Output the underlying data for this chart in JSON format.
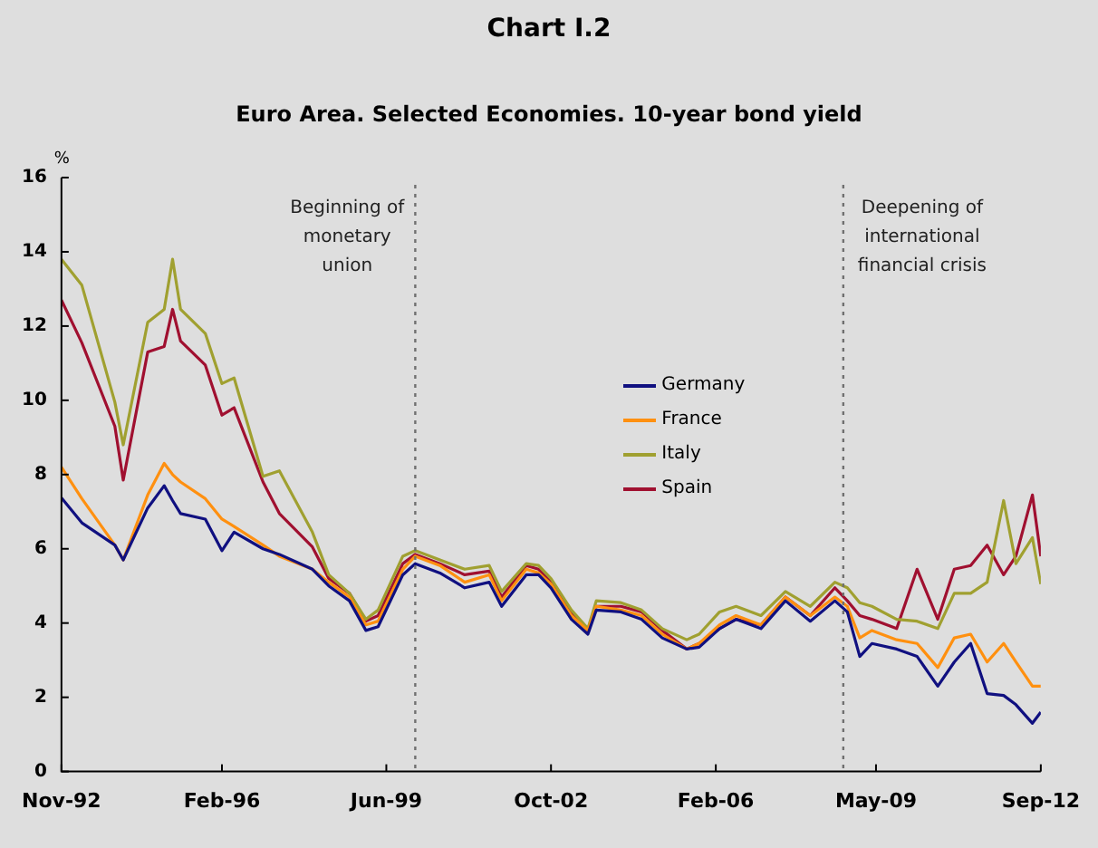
{
  "chart_data": {
    "type": "line",
    "title": "Chart I.2",
    "subtitle": "Euro Area. Selected Economies. 10-year bond yield",
    "ylabel": "%",
    "x": [
      "1992-11",
      "1993-04",
      "1993-12",
      "1994-02",
      "1994-08",
      "1994-12",
      "1995-02",
      "1995-04",
      "1995-10",
      "1996-02",
      "1996-05",
      "1996-12",
      "1997-04",
      "1997-12",
      "1998-04",
      "1998-09",
      "1999-01",
      "1999-04",
      "1999-10",
      "2000-01",
      "2000-07",
      "2001-01",
      "2001-07",
      "2001-10",
      "2002-04",
      "2002-07",
      "2002-10",
      "2003-03",
      "2003-07",
      "2003-09",
      "2004-03",
      "2004-08",
      "2005-01",
      "2005-07",
      "2005-10",
      "2006-03",
      "2006-07",
      "2007-01",
      "2007-07",
      "2008-01",
      "2008-07",
      "2008-10",
      "2009-01",
      "2009-04",
      "2009-10",
      "2010-03",
      "2010-08",
      "2010-12",
      "2011-04",
      "2011-08",
      "2011-12",
      "2012-03",
      "2012-07",
      "2012-09"
    ],
    "series": [
      {
        "name": "Germany",
        "color": "#101080",
        "values": [
          7.37,
          6.7,
          6.1,
          5.7,
          7.1,
          7.7,
          7.3,
          6.95,
          6.8,
          5.95,
          6.45,
          6.0,
          5.85,
          5.45,
          5.0,
          4.6,
          3.8,
          3.9,
          5.3,
          5.6,
          5.35,
          4.95,
          5.1,
          4.45,
          5.3,
          5.3,
          4.95,
          4.1,
          3.7,
          4.35,
          4.3,
          4.1,
          3.6,
          3.3,
          3.35,
          3.85,
          4.1,
          3.85,
          4.6,
          4.05,
          4.6,
          4.3,
          3.1,
          3.45,
          3.3,
          3.1,
          2.3,
          2.95,
          3.45,
          2.1,
          2.05,
          1.8,
          1.3,
          1.6
        ]
      },
      {
        "name": "France",
        "color": "#ff9010",
        "values": [
          8.2,
          7.35,
          6.1,
          5.7,
          7.45,
          8.3,
          8.0,
          7.8,
          7.35,
          6.8,
          6.6,
          6.1,
          5.8,
          5.45,
          5.1,
          4.7,
          3.95,
          4.05,
          5.45,
          5.8,
          5.55,
          5.1,
          5.3,
          4.6,
          5.45,
          5.35,
          5.05,
          4.2,
          3.8,
          4.45,
          4.35,
          4.2,
          3.7,
          3.3,
          3.45,
          3.95,
          4.2,
          3.95,
          4.7,
          4.2,
          4.7,
          4.45,
          3.6,
          3.8,
          3.55,
          3.45,
          2.8,
          3.6,
          3.7,
          2.95,
          3.45,
          2.95,
          2.3,
          2.3
        ]
      },
      {
        "name": "Italy",
        "color": "#a0a030",
        "values": [
          13.8,
          13.1,
          9.95,
          8.8,
          12.1,
          12.45,
          13.8,
          12.45,
          11.8,
          10.45,
          10.6,
          7.95,
          8.1,
          6.45,
          5.3,
          4.8,
          4.1,
          4.35,
          5.8,
          5.95,
          5.7,
          5.45,
          5.55,
          4.85,
          5.6,
          5.55,
          5.2,
          4.35,
          3.85,
          4.6,
          4.55,
          4.35,
          3.85,
          3.55,
          3.7,
          4.3,
          4.45,
          4.2,
          4.85,
          4.45,
          5.1,
          4.95,
          4.55,
          4.45,
          4.1,
          4.05,
          3.85,
          4.8,
          4.8,
          5.1,
          7.3,
          5.6,
          6.3,
          5.05
        ]
      },
      {
        "name": "Spain",
        "color": "#a01030",
        "values": [
          12.7,
          11.55,
          9.3,
          7.85,
          11.3,
          11.45,
          12.45,
          11.6,
          10.95,
          9.6,
          9.8,
          7.8,
          6.95,
          6.05,
          5.2,
          4.8,
          4.05,
          4.2,
          5.6,
          5.85,
          5.6,
          5.3,
          5.4,
          4.7,
          5.55,
          5.45,
          5.1,
          4.3,
          3.8,
          4.45,
          4.45,
          4.3,
          3.8,
          3.3,
          3.45,
          3.85,
          4.1,
          3.95,
          4.7,
          4.2,
          4.95,
          4.6,
          4.2,
          4.1,
          3.85,
          5.45,
          4.1,
          5.45,
          5.55,
          6.1,
          5.3,
          5.8,
          7.45,
          5.8
        ]
      }
    ],
    "xlim": [
      "1992-11",
      "2012-09"
    ],
    "xticks": [
      {
        "value": "1992-11",
        "label": "Nov-92"
      },
      {
        "value": "1996-02",
        "label": "Feb-96"
      },
      {
        "value": "1999-06",
        "label": "Jun-99"
      },
      {
        "value": "2002-10",
        "label": "Oct-02"
      },
      {
        "value": "2006-02",
        "label": "Feb-06"
      },
      {
        "value": "2009-05",
        "label": "May-09"
      },
      {
        "value": "2012-09",
        "label": "Sep-12"
      }
    ],
    "ylim": [
      0,
      16
    ],
    "yticks": [
      0,
      2,
      4,
      6,
      8,
      10,
      12,
      14,
      16
    ],
    "ref_lines": [
      {
        "axis": "x",
        "value": "2000-01",
        "label": "Beginning of\nmonetary\nunion",
        "color": "#707070",
        "line_style": "dotted"
      },
      {
        "axis": "x",
        "value": "2008-09",
        "label": "Deepening of\ninternational\nfinancial crisis",
        "color": "#707070",
        "line_style": "dotted"
      }
    ],
    "grid": false,
    "legend": "center",
    "marker": "none",
    "line_style": "solid"
  }
}
